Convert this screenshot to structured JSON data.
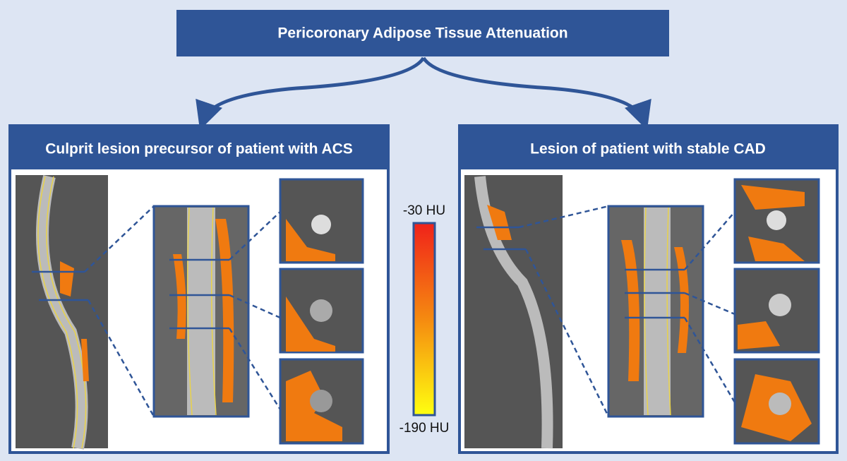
{
  "header": {
    "title": "Pericoronary Adipose Tissue Attenuation"
  },
  "panels": [
    {
      "title": "Culprit lesion precursor of patient with ACS"
    },
    {
      "title": "Lesion of patient with stable CAD"
    }
  ],
  "colorbar": {
    "top_label": "-30 HU",
    "bottom_label": "-190 HU"
  }
}
